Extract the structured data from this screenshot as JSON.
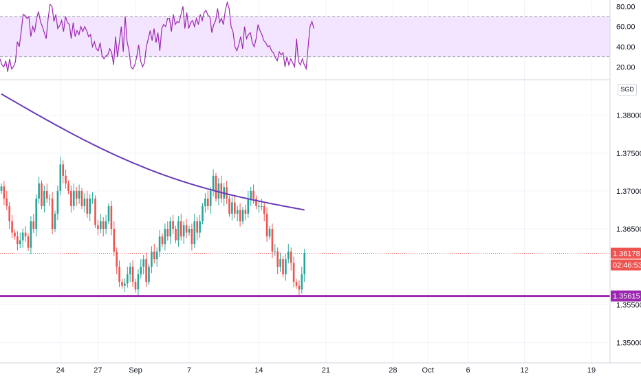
{
  "instrument": {
    "currency": "SGD"
  },
  "colors": {
    "up": "#26a69a",
    "down": "#ef5350",
    "ma": "#673ab7",
    "support": "#9c27b0",
    "rsi_line": "#9c27b0",
    "rsi_band": "#f3e5ff",
    "grid": "#f0f3fa",
    "axis_text": "#131722"
  },
  "price_labels": {
    "current_price": "1.36178",
    "countdown": "02:46:53",
    "support_level": "1.35615"
  },
  "chart_data": [
    {
      "type": "line",
      "name": "rsi-pane",
      "ylim": [
        10,
        85
      ],
      "yticks": [
        "80.00",
        "60.00",
        "40.00",
        "20.00"
      ],
      "ytick_values": [
        80,
        60,
        40,
        20
      ],
      "bands": [
        30,
        70
      ],
      "values": [
        28,
        22,
        20,
        26,
        15,
        28,
        18,
        20,
        25,
        45,
        40,
        55,
        72,
        71,
        68,
        70,
        50,
        60,
        55,
        68,
        75,
        65,
        60,
        54,
        48,
        68,
        82,
        80,
        65,
        72,
        58,
        61,
        66,
        55,
        70,
        64,
        62,
        48,
        64,
        50,
        56,
        52,
        60,
        55,
        60,
        56,
        50,
        52,
        40,
        45,
        38,
        36,
        44,
        31,
        28,
        31,
        32,
        38,
        34,
        22,
        50,
        30,
        45,
        60,
        35,
        70,
        45,
        36,
        20,
        18,
        22,
        30,
        42,
        26,
        20,
        24,
        40,
        48,
        56,
        46,
        58,
        44,
        54,
        36,
        58,
        62,
        60,
        68,
        68,
        55,
        72,
        62,
        65,
        64,
        72,
        80,
        58,
        74,
        58,
        64,
        66,
        60,
        68,
        62,
        72,
        66,
        74,
        76,
        71,
        70,
        54,
        62,
        66,
        78,
        64,
        68,
        62,
        76,
        84,
        78,
        60,
        55,
        40,
        36,
        42,
        50,
        38,
        60,
        48,
        52,
        54,
        44,
        40,
        48,
        62,
        56,
        52,
        46,
        44,
        40,
        41,
        36,
        34,
        29,
        26,
        35,
        32,
        34,
        20,
        30,
        22,
        28,
        24,
        20,
        48,
        25,
        22,
        28,
        22,
        18,
        40,
        60,
        65,
        58
      ]
    },
    {
      "type": "candlestick",
      "name": "price-pane",
      "ylim": [
        1.3475,
        1.3845
      ],
      "yticks": [
        "1.38000",
        "1.37500",
        "1.37000",
        "1.36500",
        "1.35500",
        "1.35000"
      ],
      "ytick_values": [
        1.38,
        1.375,
        1.37,
        1.365,
        1.355,
        1.35
      ],
      "x_tick_labels": [
        "24",
        "27",
        "Sep",
        "7",
        "14",
        "21",
        "28",
        "Oct",
        "6",
        "12",
        "19"
      ],
      "x_tick_index": [
        22,
        36,
        50,
        70,
        96,
        121,
        146,
        159,
        174,
        195,
        220
      ],
      "ma_line": {
        "name": "MA",
        "start": 1.3828,
        "end": 1.3675,
        "sag": 0.0025
      },
      "support_line": 1.35615,
      "current_price": 1.36178,
      "closes": [
        1.3706,
        1.369,
        1.368,
        1.366,
        1.3645,
        1.364,
        1.363,
        1.3635,
        1.3645,
        1.364,
        1.3625,
        1.366,
        1.365,
        1.369,
        1.371,
        1.368,
        1.37,
        1.369,
        1.369,
        1.365,
        1.367,
        1.37,
        1.3735,
        1.372,
        1.371,
        1.37,
        1.368,
        1.37,
        1.369,
        1.37,
        1.368,
        1.369,
        1.367,
        1.369,
        1.369,
        1.3655,
        1.365,
        1.366,
        1.365,
        1.366,
        1.368,
        1.365,
        1.362,
        1.36,
        1.358,
        1.3575,
        1.3578,
        1.359,
        1.36,
        1.358,
        1.357,
        1.359,
        1.36,
        1.361,
        1.358,
        1.36,
        1.362,
        1.361,
        1.362,
        1.364,
        1.363,
        1.365,
        1.364,
        1.366,
        1.365,
        1.3635,
        1.366,
        1.364,
        1.3655,
        1.3645,
        1.365,
        1.363,
        1.366,
        1.3645,
        1.366,
        1.368,
        1.369,
        1.368,
        1.37,
        1.372,
        1.369,
        1.371,
        1.369,
        1.3705,
        1.369,
        1.367,
        1.3685,
        1.367,
        1.3675,
        1.366,
        1.3675,
        1.367,
        1.369,
        1.37,
        1.369,
        1.368,
        1.368,
        1.368,
        1.367,
        1.364,
        1.365,
        1.362,
        1.362,
        1.36,
        1.361,
        1.359,
        1.361,
        1.362,
        1.3605,
        1.358,
        1.3575,
        1.357,
        1.359,
        1.3618
      ]
    }
  ]
}
